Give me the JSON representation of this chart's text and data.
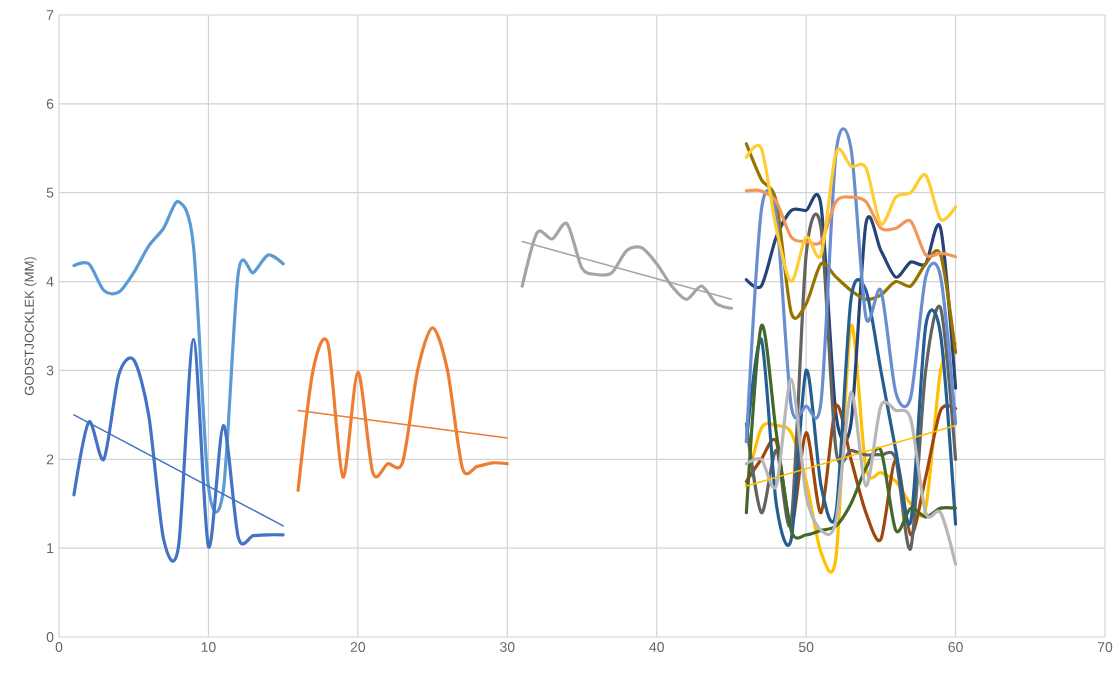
{
  "chart_data": {
    "type": "line",
    "ylabel": "GODSTJOCKLEK (MM)",
    "xlim": [
      0,
      70
    ],
    "xticks": [
      0,
      10,
      20,
      30,
      40,
      50,
      60,
      70
    ],
    "ylim": [
      0,
      7
    ],
    "yticks": [
      0,
      1,
      2,
      3,
      4,
      5,
      6,
      7
    ],
    "grid": true,
    "legend": false,
    "marker": "none",
    "series": [
      {
        "color": "#5b9bd5",
        "x": [
          1,
          2,
          3,
          4,
          5,
          6,
          7,
          8,
          9,
          10,
          11,
          12,
          13,
          14,
          15
        ],
        "values": [
          4.18,
          4.2,
          3.9,
          3.88,
          4.1,
          4.4,
          4.6,
          4.9,
          4.4,
          1.7,
          1.65,
          4.1,
          4.1,
          4.3,
          4.2
        ]
      },
      {
        "color": "#4472c4",
        "x": [
          1,
          2,
          3,
          4,
          5,
          6,
          7,
          8,
          9,
          10,
          11,
          12,
          13,
          14,
          15
        ],
        "values": [
          1.6,
          2.42,
          2.0,
          2.95,
          3.12,
          2.5,
          1.1,
          1.02,
          3.35,
          1.02,
          2.38,
          1.12,
          1.14,
          1.15,
          1.15
        ]
      },
      {
        "type": "line",
        "color": "#4472c4",
        "x": [
          1,
          15
        ],
        "values": [
          2.5,
          1.25
        ]
      },
      {
        "color": "#ed7d31",
        "x": [
          16,
          17,
          18,
          19,
          20,
          21,
          22,
          23,
          24,
          25,
          26,
          27,
          28,
          29,
          30
        ],
        "values": [
          1.65,
          3.0,
          3.3,
          1.8,
          2.98,
          1.85,
          1.95,
          1.97,
          3.0,
          3.48,
          3.0,
          1.9,
          1.92,
          1.96,
          1.95
        ]
      },
      {
        "type": "line",
        "color": "#ed7d31",
        "x": [
          16,
          30
        ],
        "values": [
          2.55,
          2.24
        ]
      },
      {
        "color": "#a5a5a5",
        "x": [
          31,
          32,
          33,
          34,
          35,
          36,
          37,
          38,
          39,
          40,
          41,
          42,
          43,
          44,
          45
        ],
        "values": [
          3.95,
          4.55,
          4.48,
          4.65,
          4.15,
          4.08,
          4.1,
          4.35,
          4.38,
          4.2,
          3.95,
          3.8,
          3.95,
          3.75,
          3.7
        ]
      },
      {
        "type": "line",
        "color": "#a5a5a5",
        "x": [
          31,
          45
        ],
        "values": [
          4.45,
          3.8
        ]
      },
      {
        "color": "#ffc000",
        "x": [
          46,
          47,
          48,
          49,
          50,
          51,
          52,
          53,
          54,
          55,
          56,
          57,
          58,
          59,
          60
        ],
        "values": [
          1.7,
          2.35,
          2.38,
          2.3,
          1.75,
          0.95,
          0.9,
          3.5,
          1.9,
          1.85,
          1.75,
          1.5,
          1.45,
          3.0,
          3.3
        ]
      },
      {
        "color": "#264478",
        "x": [
          46,
          47,
          48,
          49,
          50,
          51,
          52,
          53,
          54,
          55,
          56,
          57,
          58,
          59,
          60
        ],
        "values": [
          4.02,
          3.95,
          4.5,
          4.8,
          4.8,
          4.85,
          2.5,
          2.4,
          4.65,
          4.35,
          4.05,
          4.22,
          4.2,
          4.6,
          2.8
        ]
      },
      {
        "color": "#9e480e",
        "x": [
          46,
          47,
          48,
          49,
          50,
          51,
          52,
          53,
          54,
          55,
          56,
          57,
          58,
          59,
          60
        ],
        "values": [
          1.75,
          2.0,
          2.2,
          1.25,
          2.3,
          1.4,
          2.6,
          2.0,
          1.4,
          1.1,
          2.0,
          1.15,
          1.8,
          2.55,
          2.57
        ]
      },
      {
        "color": "#636363",
        "x": [
          46,
          47,
          48,
          49,
          50,
          51,
          52,
          53,
          54,
          55,
          56,
          57,
          58,
          59,
          60
        ],
        "values": [
          2.4,
          1.4,
          2.1,
          1.3,
          4.3,
          4.6,
          2.1,
          2.1,
          2.05,
          2.05,
          2.0,
          1.0,
          3.0,
          3.7,
          2.0
        ]
      },
      {
        "color": "#997300",
        "x": [
          46,
          47,
          48,
          49,
          50,
          51,
          52,
          53,
          54,
          55,
          56,
          57,
          58,
          59,
          60
        ],
        "values": [
          5.55,
          5.15,
          4.9,
          3.65,
          3.75,
          4.2,
          4.05,
          3.9,
          3.8,
          3.85,
          4.0,
          3.95,
          4.2,
          4.3,
          3.2
        ]
      },
      {
        "color": "#255e91",
        "x": [
          46,
          47,
          48,
          49,
          50,
          51,
          52,
          53,
          54,
          55,
          56,
          57,
          58,
          59,
          60
        ],
        "values": [
          2.2,
          3.35,
          1.5,
          1.1,
          3.0,
          1.7,
          1.4,
          3.8,
          3.9,
          3.0,
          2.1,
          1.3,
          3.5,
          3.4,
          1.27
        ]
      },
      {
        "color": "#43682b",
        "x": [
          46,
          47,
          48,
          49,
          50,
          51,
          52,
          53,
          54,
          55,
          56,
          57,
          58,
          59,
          60
        ],
        "values": [
          1.4,
          3.5,
          2.3,
          1.2,
          1.15,
          1.2,
          1.25,
          1.5,
          1.9,
          2.1,
          1.2,
          1.45,
          1.35,
          1.45,
          1.45
        ]
      },
      {
        "color": "#698ed0",
        "x": [
          46,
          47,
          48,
          49,
          50,
          51,
          52,
          53,
          54,
          55,
          56,
          57,
          58,
          59,
          60
        ],
        "values": [
          2.2,
          4.8,
          4.75,
          2.6,
          2.6,
          2.65,
          5.45,
          5.5,
          3.6,
          3.9,
          2.75,
          2.7,
          4.05,
          4.05,
          2.4
        ]
      },
      {
        "color": "#f1975a",
        "x": [
          46,
          47,
          48,
          49,
          50,
          51,
          52,
          53,
          54,
          55,
          56,
          57,
          58,
          59,
          60
        ],
        "values": [
          5.02,
          5.02,
          4.9,
          4.5,
          4.45,
          4.45,
          4.9,
          4.95,
          4.9,
          4.6,
          4.6,
          4.68,
          4.3,
          4.32,
          4.28
        ]
      },
      {
        "color": "#b7b7b7",
        "x": [
          46,
          47,
          48,
          49,
          50,
          51,
          52,
          53,
          54,
          55,
          56,
          57,
          58,
          59,
          60
        ],
        "values": [
          1.95,
          2.0,
          1.7,
          2.9,
          1.6,
          1.2,
          1.3,
          2.75,
          1.7,
          2.6,
          2.55,
          2.45,
          1.4,
          1.4,
          0.82
        ]
      },
      {
        "color": "#ffcd33",
        "x": [
          46,
          47,
          48,
          49,
          50,
          51,
          52,
          53,
          54,
          55,
          56,
          57,
          58,
          59,
          60
        ],
        "values": [
          5.4,
          5.5,
          4.6,
          4.0,
          4.5,
          4.3,
          5.45,
          5.3,
          5.28,
          4.65,
          4.95,
          5.0,
          5.2,
          4.7,
          4.84
        ]
      },
      {
        "type": "line",
        "color": "#ffc000",
        "x": [
          46,
          60
        ],
        "values": [
          1.7,
          2.38
        ]
      }
    ]
  }
}
